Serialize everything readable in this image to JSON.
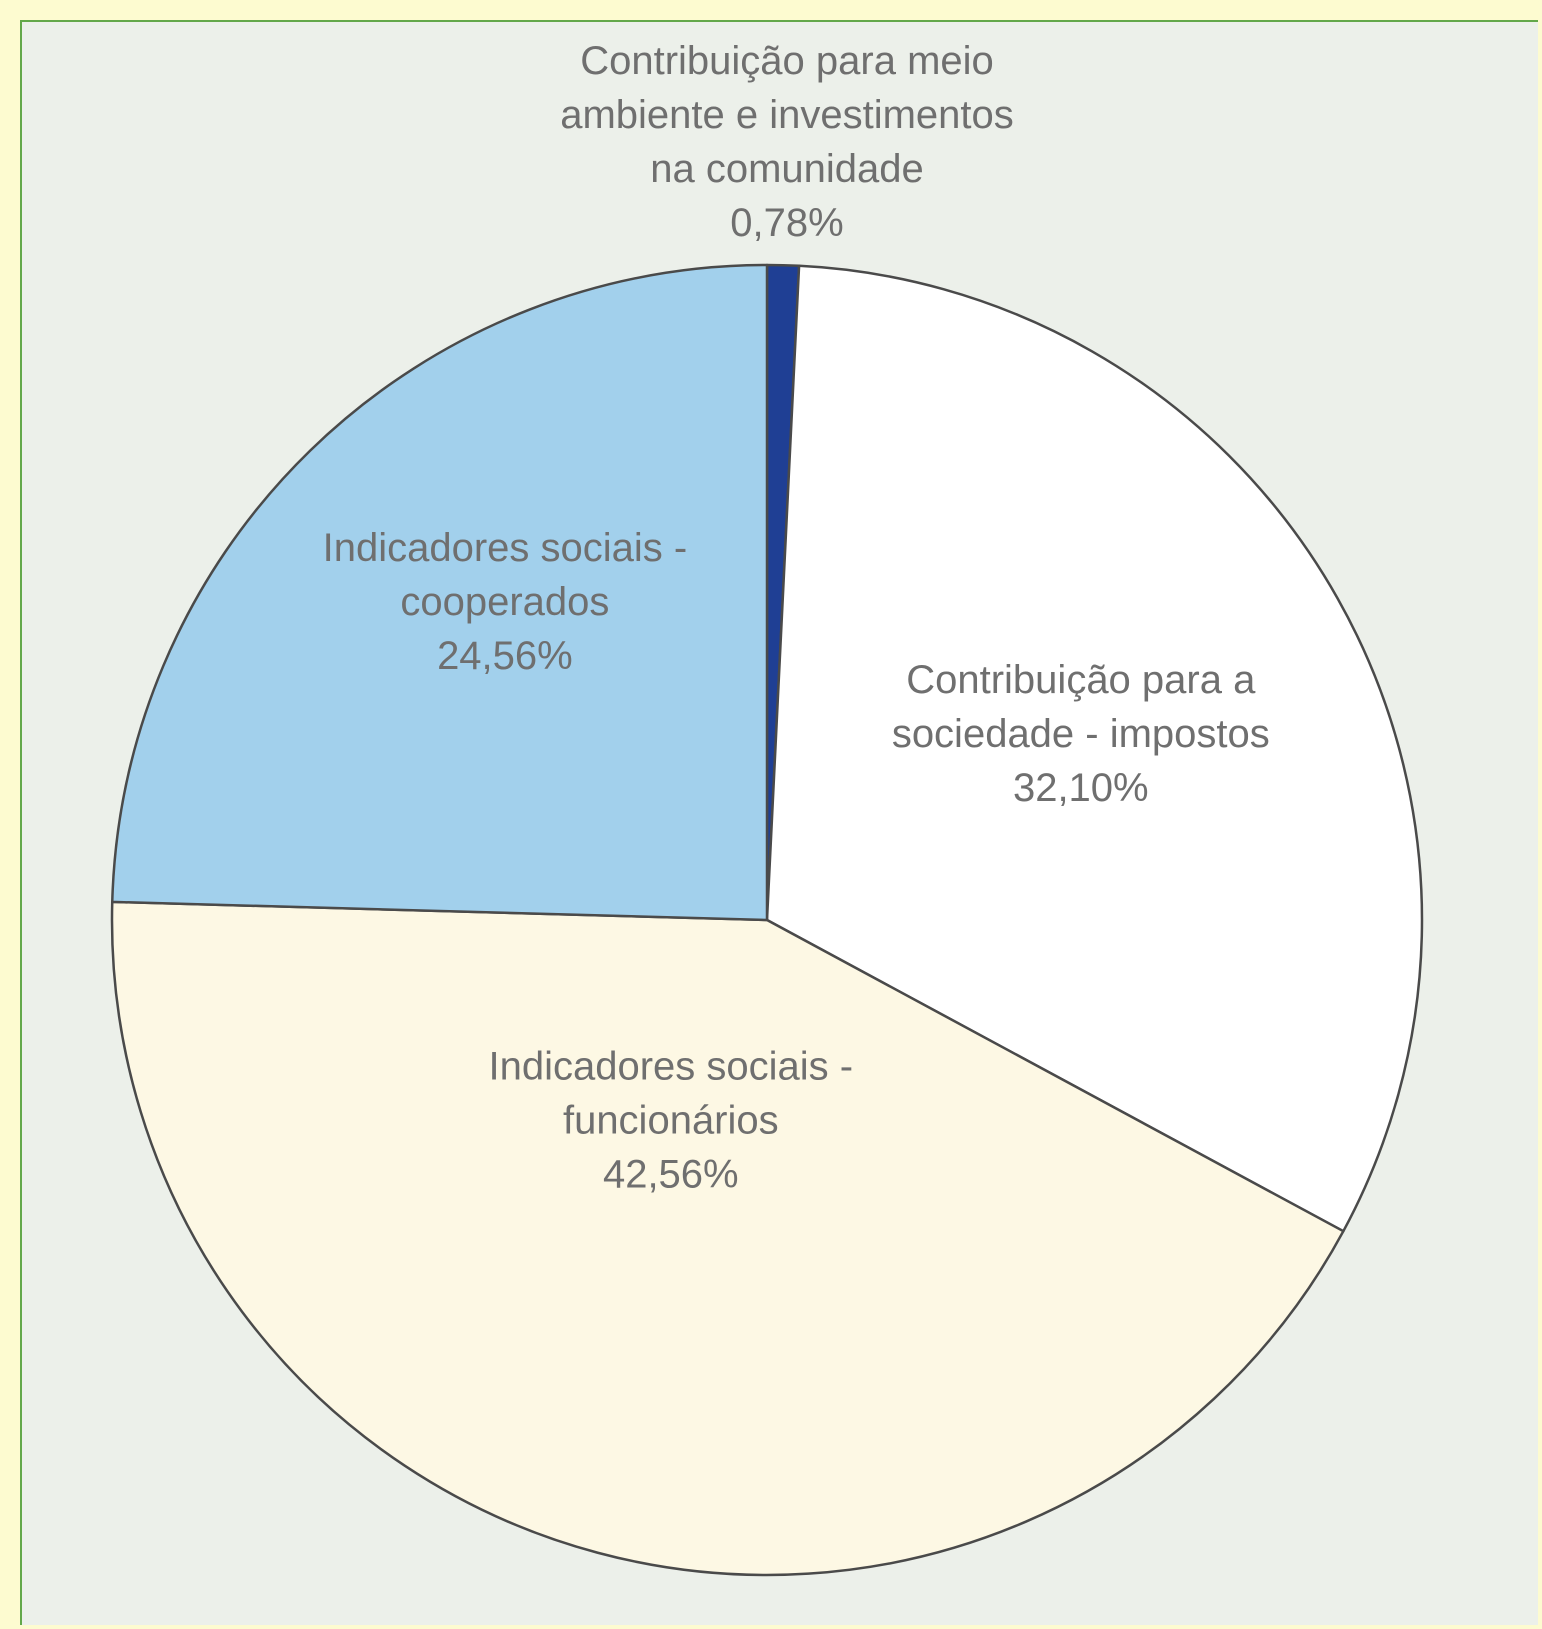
{
  "chart_data": {
    "type": "pie",
    "title": "",
    "start_angle": "top",
    "direction": "clockwise",
    "slices": [
      {
        "label": "Contribuição para meio ambiente e investimentos na comunidade",
        "label_lines": [
          "Contribuição para meio",
          "ambiente e investimentos",
          "na comunidade"
        ],
        "value": 0.78,
        "value_label": "0,78%",
        "color": "#1f3f94",
        "label_placement": "outside-top"
      },
      {
        "label": "Contribuição para a sociedade - impostos",
        "label_lines": [
          "Contribuição para a",
          "sociedade - impostos"
        ],
        "value": 32.1,
        "value_label": "32,10%",
        "color": "#ffffff",
        "label_placement": "inside"
      },
      {
        "label": "Indicadores sociais - funcionários",
        "label_lines": [
          "Indicadores sociais -",
          "funcionários"
        ],
        "value": 42.56,
        "value_label": "42,56%",
        "color": "#fdf8e4",
        "label_placement": "inside"
      },
      {
        "label": "Indicadores sociais - cooperados",
        "label_lines": [
          "Indicadores sociais -",
          "cooperados"
        ],
        "value": 24.56,
        "value_label": "24,56%",
        "color": "#a2d0ec",
        "label_placement": "inside"
      }
    ],
    "colors": {
      "outline": "#4a4a4a",
      "label_text": "#6f6f6f",
      "plot_background": "#ecf0ea",
      "border": "#63a84a",
      "page_background": "#fdfbd0"
    }
  }
}
